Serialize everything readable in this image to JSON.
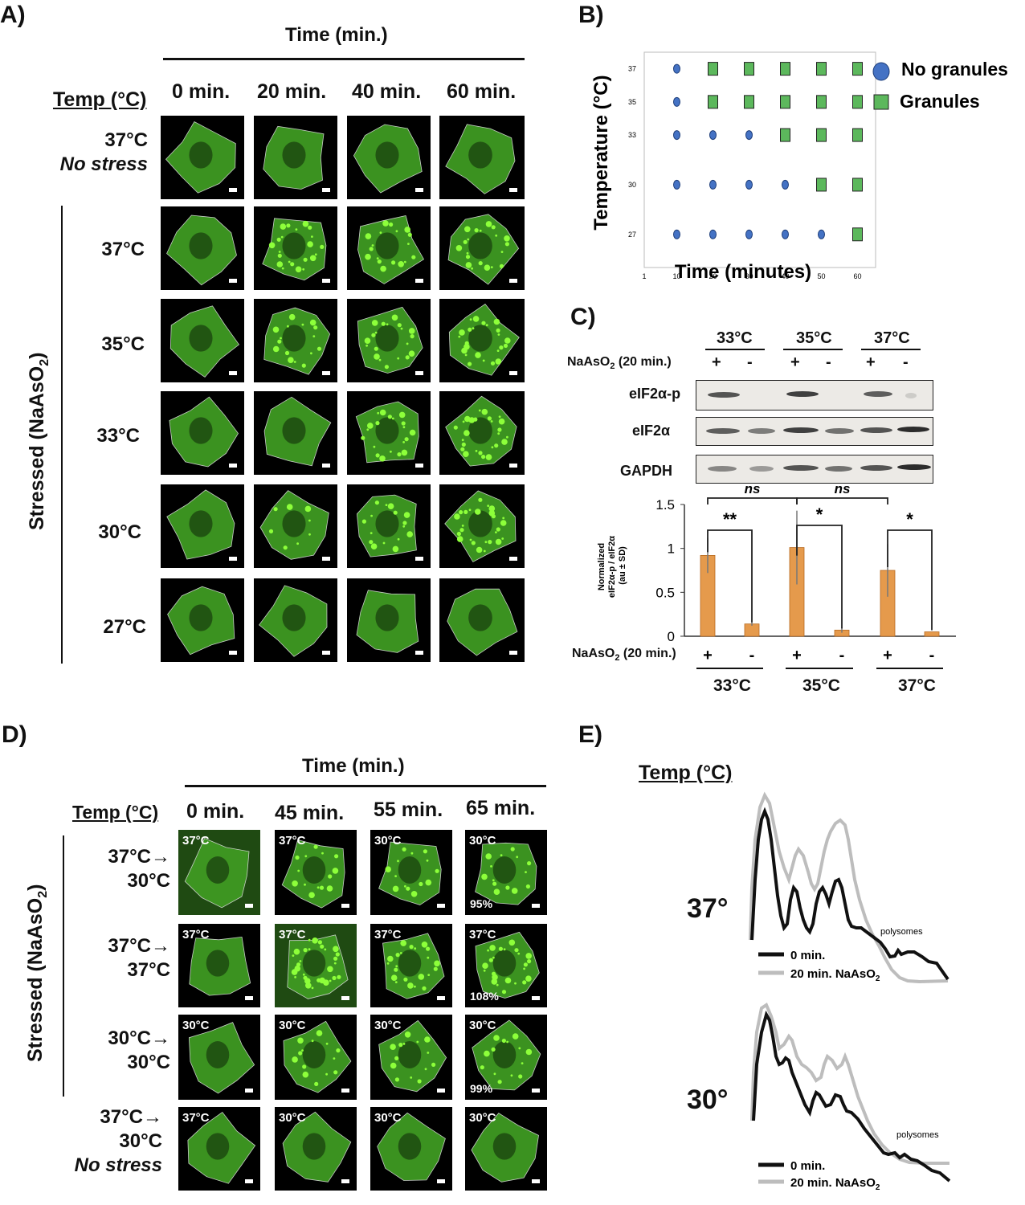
{
  "panelA": {
    "label": "A)",
    "time_title": "Time (min.)",
    "temp_header": "Temp (°C)",
    "cols": [
      "0 min.",
      "20 min.",
      "40 min.",
      "60 min."
    ],
    "row0": [
      "37°C",
      "No stress"
    ],
    "stressed_label": "Stressed (NaAsO",
    "stressed_sub": "2",
    "stressed_close": ")",
    "rows": [
      "37°C",
      "35°C",
      "33°C",
      "30°C",
      "27°C"
    ]
  },
  "panelB": {
    "label": "B)",
    "legend": [
      "No granules",
      "Granules"
    ],
    "chart_data": {
      "type": "scatter",
      "xlabel": "Time (minutes)",
      "ylabel": "Temperature (°C)",
      "x_ticks": [
        "1",
        "10",
        "20",
        "30",
        "40",
        "50",
        "60"
      ],
      "y_ticks": [
        "27",
        "30",
        "33",
        "35",
        "37"
      ],
      "series": [
        {
          "name": "No granules",
          "points": [
            [
              10,
              37
            ],
            [
              10,
              35
            ],
            [
              10,
              33
            ],
            [
              20,
              33
            ],
            [
              30,
              33
            ],
            [
              10,
              30
            ],
            [
              20,
              30
            ],
            [
              30,
              30
            ],
            [
              40,
              30
            ],
            [
              10,
              27
            ],
            [
              20,
              27
            ],
            [
              30,
              27
            ],
            [
              40,
              27
            ],
            [
              50,
              27
            ]
          ]
        },
        {
          "name": "Granules",
          "points": [
            [
              20,
              37
            ],
            [
              30,
              37
            ],
            [
              40,
              37
            ],
            [
              50,
              37
            ],
            [
              60,
              37
            ],
            [
              20,
              35
            ],
            [
              30,
              35
            ],
            [
              40,
              35
            ],
            [
              50,
              35
            ],
            [
              60,
              35
            ],
            [
              40,
              33
            ],
            [
              50,
              33
            ],
            [
              60,
              33
            ],
            [
              50,
              30
            ],
            [
              60,
              30
            ],
            [
              60,
              27
            ]
          ]
        }
      ],
      "colors": {
        "No granules": "#4472c4",
        "Granules": "#5cb85c"
      }
    }
  },
  "panelC": {
    "label": "C)",
    "temps": [
      "33°C",
      "35°C",
      "37°C"
    ],
    "treat_label": "NaAsO",
    "treat_sub": "2",
    "treat_suffix": " (20 min.)",
    "signs": [
      "+",
      "-",
      "+",
      "-",
      "+",
      "-"
    ],
    "blots": [
      "eIF2α-p",
      "eIF2α",
      "GAPDH"
    ],
    "ylabel_lines": [
      "Normalized",
      "eIF2α-p / eIF2α",
      "(au ± SD)"
    ],
    "sig": {
      "ns": "ns",
      "double": "**",
      "single": "*"
    },
    "chart_data": {
      "type": "bar",
      "categories": [
        "33°C +",
        "33°C -",
        "35°C +",
        "35°C -",
        "37°C +",
        "37°C -"
      ],
      "values": [
        0.92,
        0.14,
        1.01,
        0.07,
        0.75,
        0.05
      ],
      "errors": [
        0.2,
        0.02,
        0.42,
        0.03,
        0.3,
        0.0
      ],
      "y_ticks": [
        "0",
        "0.5",
        "1",
        "1.5"
      ],
      "ylim": [
        0,
        1.5
      ],
      "bar_color": "#e59a4c"
    }
  },
  "panelD": {
    "label": "D)",
    "time_title": "Time (min.)",
    "temp_header": "Temp (°C)",
    "cols": [
      "0 min.",
      "45 min.",
      "55 min.",
      "65 min."
    ],
    "stressed_label": "Stressed (NaAsO",
    "stressed_sub": "2",
    "stressed_close": ")",
    "rows": [
      {
        "lines": [
          "37°C→",
          "30°C"
        ],
        "tags": [
          "37°C",
          "37°C",
          "30°C",
          "30°C"
        ],
        "pct": "95%"
      },
      {
        "lines": [
          "37°C→",
          "37°C"
        ],
        "tags": [
          "37°C",
          "37°C",
          "37°C",
          "37°C"
        ],
        "pct": "108%"
      },
      {
        "lines": [
          "30°C→",
          "30°C"
        ],
        "tags": [
          "30°C",
          "30°C",
          "30°C",
          "30°C"
        ],
        "pct": "99%"
      },
      {
        "lines": [
          "37°C→",
          "30°C",
          "No stress"
        ],
        "tags": [
          "37°C",
          "30°C",
          "30°C",
          "30°C"
        ],
        "pct": ""
      }
    ]
  },
  "panelE": {
    "label": "E)",
    "temp_header": "Temp (°C)",
    "profiles": [
      {
        "temp": "37°",
        "note": "polysomes",
        "legend": [
          "0 min.",
          "20 min. NaAsO"
        ],
        "sub": "2"
      },
      {
        "temp": "30°",
        "note": "polysomes",
        "legend": [
          "0 min.",
          "20 min. NaAsO"
        ],
        "sub": "2"
      }
    ]
  }
}
